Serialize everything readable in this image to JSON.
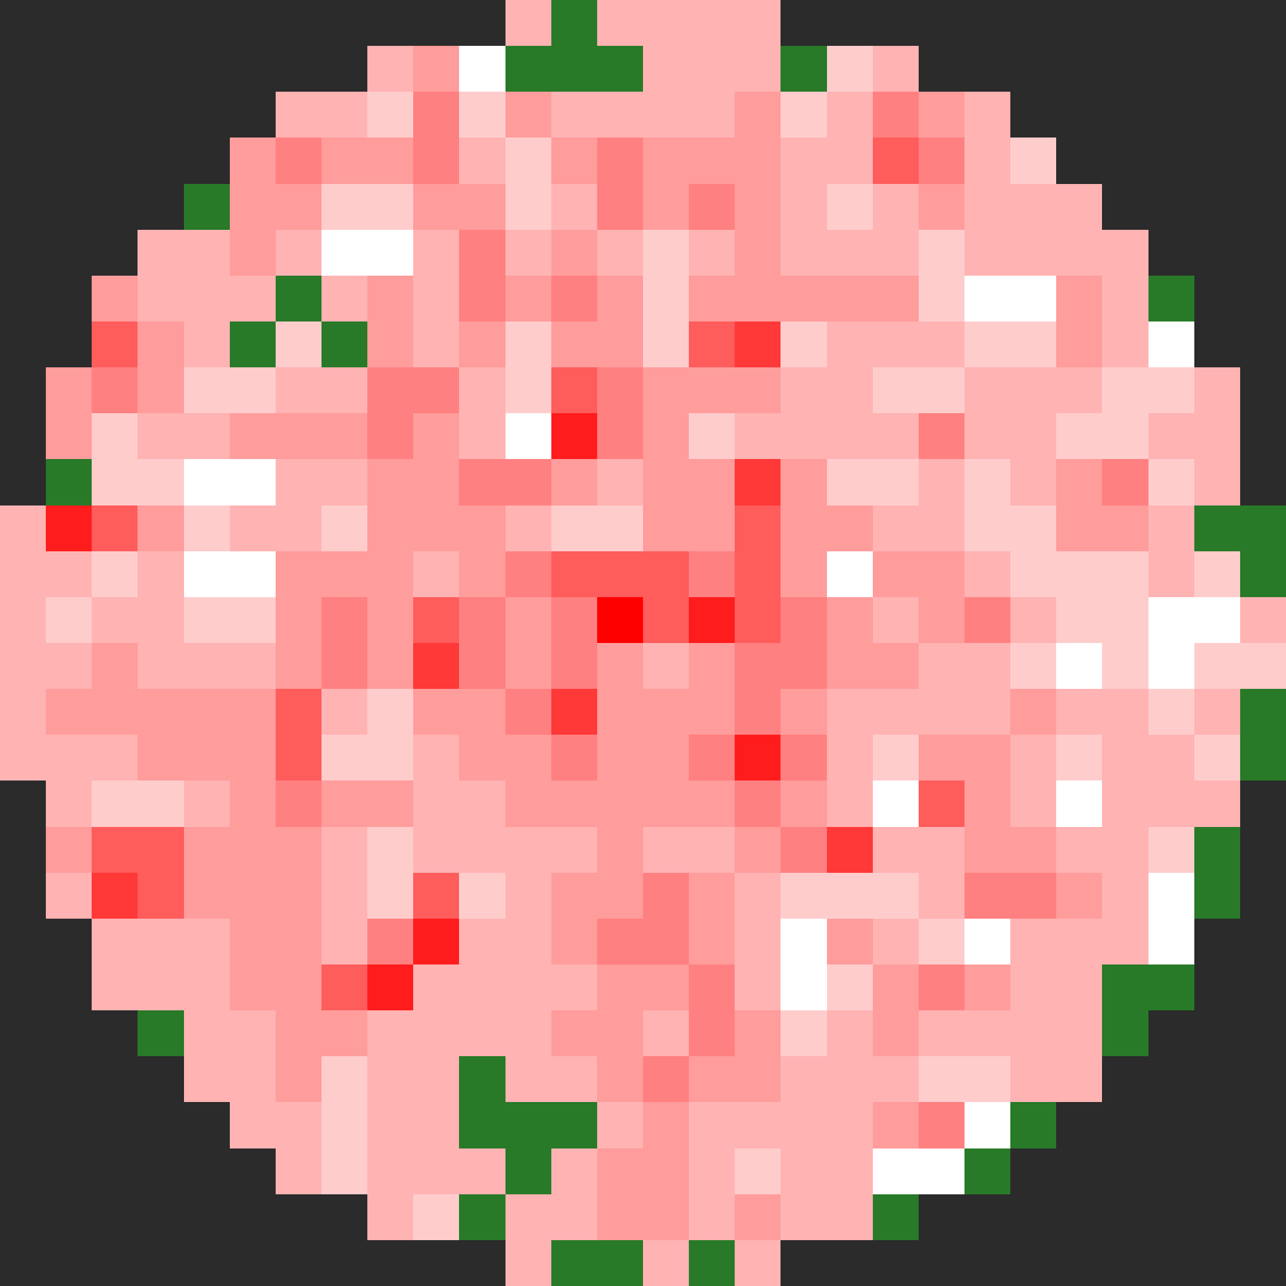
{
  "chart_data": {
    "type": "heatmap",
    "zlim": [
      -1,
      9
    ],
    "tick_labels": false,
    "grid": false,
    "cells": [
      [
        null,
        null,
        null,
        null,
        null,
        null,
        null,
        null,
        null,
        null,
        null,
        3,
        -1,
        3,
        3,
        3,
        3,
        null,
        null,
        null,
        null,
        null,
        null,
        null,
        null,
        null,
        null,
        null
      ],
      [
        null,
        null,
        null,
        null,
        null,
        null,
        null,
        null,
        3,
        4,
        1,
        -1,
        -1,
        -1,
        3,
        3,
        3,
        -1,
        2,
        3,
        null,
        null,
        null,
        null,
        null,
        null,
        null,
        null
      ],
      [
        null,
        null,
        null,
        null,
        null,
        null,
        3,
        3,
        2,
        5,
        2,
        4,
        3,
        3,
        3,
        3,
        4,
        2,
        3,
        5,
        4,
        3,
        null,
        null,
        null,
        null,
        null,
        null
      ],
      [
        null,
        null,
        null,
        null,
        null,
        4,
        5,
        4,
        4,
        5,
        3,
        2,
        4,
        5,
        4,
        4,
        4,
        3,
        3,
        6,
        5,
        3,
        2,
        null,
        null,
        null,
        null,
        null
      ],
      [
        null,
        null,
        null,
        null,
        -1,
        4,
        4,
        2,
        2,
        4,
        4,
        2,
        3,
        5,
        4,
        5,
        4,
        3,
        2,
        3,
        4,
        3,
        3,
        3,
        null,
        null,
        null,
        null
      ],
      [
        null,
        null,
        null,
        3,
        3,
        4,
        3,
        1,
        1,
        3,
        5,
        3,
        4,
        3,
        2,
        3,
        4,
        3,
        3,
        3,
        2,
        3,
        3,
        3,
        3,
        null,
        null,
        null
      ],
      [
        null,
        null,
        4,
        3,
        3,
        3,
        -1,
        3,
        4,
        3,
        5,
        4,
        5,
        4,
        2,
        4,
        4,
        4,
        4,
        4,
        2,
        1,
        1,
        4,
        3,
        -1,
        null,
        null
      ],
      [
        null,
        null,
        6,
        4,
        3,
        -1,
        2,
        -1,
        4,
        3,
        4,
        2,
        4,
        4,
        2,
        6,
        7,
        2,
        3,
        3,
        3,
        2,
        2,
        4,
        3,
        1,
        null,
        null
      ],
      [
        null,
        4,
        5,
        4,
        2,
        2,
        3,
        3,
        5,
        5,
        3,
        2,
        6,
        5,
        4,
        4,
        4,
        3,
        3,
        2,
        2,
        3,
        3,
        3,
        2,
        2,
        3,
        null
      ],
      [
        null,
        4,
        2,
        3,
        3,
        4,
        4,
        4,
        5,
        4,
        3,
        1,
        8,
        5,
        4,
        2,
        3,
        3,
        3,
        3,
        5,
        3,
        3,
        2,
        2,
        3,
        3,
        null
      ],
      [
        null,
        -1,
        2,
        2,
        1,
        1,
        3,
        3,
        4,
        4,
        5,
        5,
        4,
        3,
        4,
        4,
        7,
        4,
        2,
        2,
        3,
        2,
        3,
        4,
        5,
        2,
        3,
        null
      ],
      [
        3,
        8,
        6,
        4,
        2,
        3,
        3,
        2,
        4,
        4,
        4,
        3,
        2,
        2,
        4,
        4,
        6,
        4,
        4,
        3,
        3,
        2,
        2,
        4,
        4,
        3,
        -1,
        -1
      ],
      [
        3,
        3,
        2,
        3,
        1,
        1,
        4,
        4,
        4,
        3,
        4,
        5,
        6,
        6,
        6,
        5,
        6,
        4,
        1,
        4,
        4,
        3,
        2,
        2,
        2,
        3,
        2,
        -1
      ],
      [
        3,
        2,
        3,
        3,
        2,
        2,
        4,
        5,
        4,
        6,
        5,
        4,
        5,
        9,
        6,
        8,
        6,
        5,
        4,
        3,
        4,
        5,
        3,
        2,
        2,
        1,
        1,
        3
      ],
      [
        3,
        3,
        4,
        3,
        3,
        3,
        4,
        5,
        4,
        7,
        5,
        4,
        5,
        4,
        3,
        4,
        5,
        5,
        4,
        4,
        3,
        3,
        2,
        1,
        2,
        1,
        2,
        2
      ],
      [
        3,
        4,
        4,
        4,
        4,
        4,
        6,
        3,
        2,
        4,
        4,
        5,
        7,
        4,
        4,
        4,
        5,
        4,
        3,
        3,
        3,
        3,
        4,
        3,
        3,
        2,
        3,
        -1
      ],
      [
        3,
        3,
        3,
        4,
        4,
        4,
        6,
        2,
        2,
        3,
        4,
        4,
        5,
        4,
        4,
        5,
        8,
        5,
        3,
        2,
        4,
        4,
        3,
        2,
        3,
        3,
        2,
        -1
      ],
      [
        null,
        3,
        2,
        2,
        3,
        4,
        5,
        4,
        4,
        3,
        3,
        4,
        4,
        4,
        4,
        4,
        5,
        4,
        3,
        1,
        6,
        4,
        3,
        1,
        3,
        3,
        3,
        null
      ],
      [
        null,
        4,
        6,
        6,
        4,
        4,
        4,
        3,
        2,
        3,
        3,
        3,
        3,
        4,
        3,
        3,
        4,
        5,
        7,
        3,
        3,
        4,
        4,
        3,
        3,
        2,
        -1,
        null
      ],
      [
        null,
        3,
        7,
        6,
        4,
        4,
        4,
        3,
        2,
        6,
        2,
        3,
        4,
        4,
        5,
        4,
        3,
        2,
        2,
        2,
        3,
        5,
        5,
        4,
        3,
        1,
        -1,
        null
      ],
      [
        null,
        null,
        3,
        3,
        3,
        4,
        4,
        3,
        5,
        8,
        3,
        3,
        4,
        5,
        5,
        4,
        3,
        1,
        4,
        3,
        2,
        1,
        3,
        3,
        3,
        1,
        null,
        null
      ],
      [
        null,
        null,
        3,
        3,
        3,
        4,
        4,
        6,
        8,
        3,
        3,
        3,
        3,
        4,
        4,
        5,
        3,
        1,
        2,
        4,
        5,
        4,
        3,
        3,
        -1,
        -1,
        null,
        null
      ],
      [
        null,
        null,
        null,
        -1,
        3,
        3,
        4,
        4,
        3,
        3,
        3,
        3,
        4,
        4,
        3,
        5,
        4,
        2,
        3,
        4,
        3,
        3,
        3,
        3,
        -1,
        null,
        null,
        null
      ],
      [
        null,
        null,
        null,
        null,
        3,
        3,
        4,
        2,
        3,
        3,
        -1,
        3,
        3,
        4,
        5,
        4,
        4,
        3,
        3,
        3,
        2,
        2,
        3,
        3,
        null,
        null,
        null,
        null
      ],
      [
        null,
        null,
        null,
        null,
        null,
        3,
        3,
        2,
        3,
        3,
        -1,
        -1,
        -1,
        3,
        4,
        3,
        3,
        3,
        3,
        4,
        5,
        1,
        -1,
        null,
        null,
        null,
        null,
        null
      ],
      [
        null,
        null,
        null,
        null,
        null,
        null,
        3,
        2,
        3,
        3,
        3,
        -1,
        3,
        4,
        4,
        3,
        2,
        3,
        3,
        1,
        1,
        -1,
        null,
        null,
        null,
        null,
        null,
        null
      ],
      [
        null,
        null,
        null,
        null,
        null,
        null,
        null,
        null,
        3,
        2,
        -1,
        3,
        3,
        4,
        4,
        3,
        4,
        3,
        3,
        -1,
        null,
        null,
        null,
        null,
        null,
        null,
        null,
        null
      ],
      [
        null,
        null,
        null,
        null,
        null,
        null,
        null,
        null,
        null,
        null,
        null,
        3,
        -1,
        -1,
        3,
        -1,
        3,
        null,
        null,
        null,
        null,
        null,
        null,
        null,
        null,
        null,
        null,
        null
      ]
    ]
  }
}
